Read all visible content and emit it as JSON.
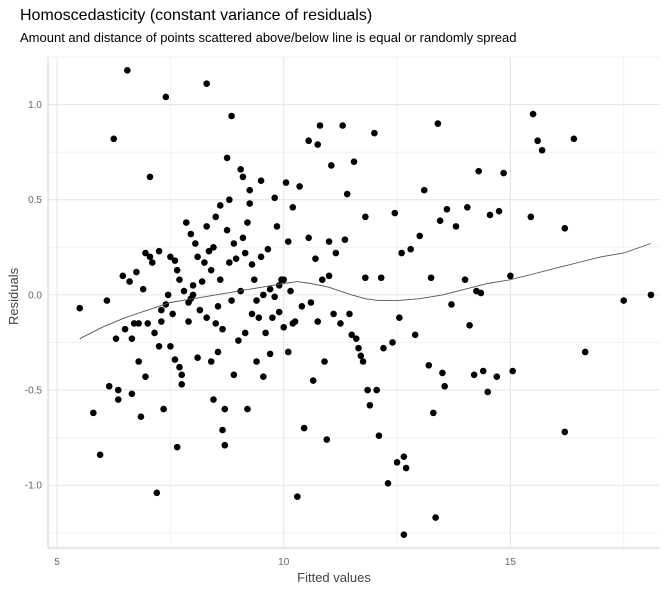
{
  "chart_data": {
    "type": "scatter",
    "title": "Homoscedasticity (constant variance of residuals)",
    "subtitle": "Amount and distance of points scattered above/below line is equal or randomly spread",
    "xlabel": "Fitted values",
    "ylabel": "Residuals",
    "xlim": [
      4.8,
      18.3
    ],
    "ylim": [
      -1.33,
      1.25
    ],
    "xticks": [
      5,
      10,
      15
    ],
    "yticks": [
      -1.0,
      -0.5,
      0.0,
      0.5,
      1.0
    ],
    "ytick_labels": [
      "-1.0",
      "-0.5",
      "0.0",
      "0.5",
      "1.0"
    ],
    "grid": true,
    "point_color": "#000000",
    "line_color": "#555555",
    "points": [
      [
        5.5,
        -0.07
      ],
      [
        5.8,
        -0.62
      ],
      [
        5.95,
        -0.84
      ],
      [
        6.1,
        -0.03
      ],
      [
        6.15,
        -0.48
      ],
      [
        6.25,
        0.82
      ],
      [
        6.3,
        -0.23
      ],
      [
        6.35,
        -0.5
      ],
      [
        6.35,
        -0.55
      ],
      [
        6.45,
        0.1
      ],
      [
        6.5,
        -0.18
      ],
      [
        6.55,
        1.18
      ],
      [
        6.6,
        0.07
      ],
      [
        6.65,
        -0.52
      ],
      [
        6.65,
        -0.23
      ],
      [
        6.7,
        -0.15
      ],
      [
        6.75,
        0.12
      ],
      [
        6.8,
        -0.35
      ],
      [
        6.8,
        -0.15
      ],
      [
        6.85,
        -0.64
      ],
      [
        6.9,
        0.03
      ],
      [
        6.95,
        0.22
      ],
      [
        6.95,
        -0.43
      ],
      [
        7.0,
        -0.15
      ],
      [
        7.05,
        0.62
      ],
      [
        7.05,
        0.2
      ],
      [
        7.1,
        0.17
      ],
      [
        7.15,
        -0.2
      ],
      [
        7.2,
        -1.04
      ],
      [
        7.25,
        0.23
      ],
      [
        7.25,
        -0.27
      ],
      [
        7.3,
        -0.08
      ],
      [
        7.3,
        -0.14
      ],
      [
        7.35,
        -0.6
      ],
      [
        7.4,
        -0.05
      ],
      [
        7.4,
        1.04
      ],
      [
        7.45,
        0.0
      ],
      [
        7.5,
        0.2
      ],
      [
        7.5,
        -0.27
      ],
      [
        7.55,
        -0.1
      ],
      [
        7.6,
        0.18
      ],
      [
        7.6,
        -0.34
      ],
      [
        7.65,
        -0.8
      ],
      [
        7.65,
        0.13
      ],
      [
        7.7,
        -0.38
      ],
      [
        7.7,
        0.08
      ],
      [
        7.75,
        -0.42
      ],
      [
        7.75,
        -0.47
      ],
      [
        7.8,
        0.02
      ],
      [
        7.85,
        0.38
      ],
      [
        7.9,
        -0.04
      ],
      [
        7.9,
        -0.14
      ],
      [
        7.95,
        0.32
      ],
      [
        7.95,
        -0.02
      ],
      [
        8.0,
        0.05
      ],
      [
        8.0,
        0.0
      ],
      [
        8.05,
        0.27
      ],
      [
        8.1,
        0.2
      ],
      [
        8.1,
        -0.33
      ],
      [
        8.15,
        -0.08
      ],
      [
        8.2,
        0.07
      ],
      [
        8.25,
        0.17
      ],
      [
        8.3,
        1.11
      ],
      [
        8.3,
        0.36
      ],
      [
        8.3,
        -0.12
      ],
      [
        8.35,
        0.23
      ],
      [
        8.4,
        0.13
      ],
      [
        8.4,
        -0.35
      ],
      [
        8.45,
        0.25
      ],
      [
        8.45,
        -0.55
      ],
      [
        8.5,
        0.41
      ],
      [
        8.5,
        -0.15
      ],
      [
        8.55,
        -0.06
      ],
      [
        8.55,
        -0.3
      ],
      [
        8.6,
        0.47
      ],
      [
        8.6,
        0.08
      ],
      [
        8.65,
        -0.18
      ],
      [
        8.65,
        -0.71
      ],
      [
        8.7,
        -0.6
      ],
      [
        8.7,
        -0.79
      ],
      [
        8.75,
        0.34
      ],
      [
        8.75,
        0.72
      ],
      [
        8.8,
        0.5
      ],
      [
        8.8,
        0.17
      ],
      [
        8.85,
        0.94
      ],
      [
        8.85,
        -0.03
      ],
      [
        8.9,
        0.27
      ],
      [
        8.9,
        -0.42
      ],
      [
        8.95,
        0.19
      ],
      [
        9.0,
        -0.24
      ],
      [
        9.05,
        0.66
      ],
      [
        9.05,
        0.02
      ],
      [
        9.1,
        0.3
      ],
      [
        9.1,
        0.62
      ],
      [
        9.15,
        0.22
      ],
      [
        9.15,
        -0.2
      ],
      [
        9.2,
        0.38
      ],
      [
        9.2,
        -0.6
      ],
      [
        9.25,
        0.48
      ],
      [
        9.25,
        0.55
      ],
      [
        9.3,
        0.16
      ],
      [
        9.3,
        -0.1
      ],
      [
        9.35,
        0.08
      ],
      [
        9.4,
        -0.03
      ],
      [
        9.4,
        -0.35
      ],
      [
        9.45,
        -0.12
      ],
      [
        9.5,
        0.6
      ],
      [
        9.5,
        0.2
      ],
      [
        9.55,
        0.0
      ],
      [
        9.55,
        -0.43
      ],
      [
        9.6,
        -0.2
      ],
      [
        9.65,
        0.24
      ],
      [
        9.7,
        0.03
      ],
      [
        9.7,
        -0.31
      ],
      [
        9.75,
        -0.12
      ],
      [
        9.8,
        0.51
      ],
      [
        9.8,
        -0.01
      ],
      [
        9.85,
        0.36
      ],
      [
        9.9,
        0.05
      ],
      [
        9.9,
        -0.09
      ],
      [
        9.95,
        0.08
      ],
      [
        10.0,
        0.08
      ],
      [
        10.0,
        -0.17
      ],
      [
        10.05,
        0.59
      ],
      [
        10.1,
        0.28
      ],
      [
        10.1,
        -0.3
      ],
      [
        10.15,
        0.02
      ],
      [
        10.2,
        0.46
      ],
      [
        10.2,
        -0.15
      ],
      [
        10.25,
        -0.14
      ],
      [
        10.3,
        -1.06
      ],
      [
        10.35,
        0.57
      ],
      [
        10.4,
        -0.06
      ],
      [
        10.45,
        -0.7
      ],
      [
        10.55,
        0.81
      ],
      [
        10.55,
        0.3
      ],
      [
        10.6,
        -0.04
      ],
      [
        10.65,
        -0.45
      ],
      [
        10.7,
        0.19
      ],
      [
        10.75,
        0.79
      ],
      [
        10.75,
        -0.14
      ],
      [
        10.8,
        0.89
      ],
      [
        10.85,
        0.08
      ],
      [
        10.9,
        -0.35
      ],
      [
        10.95,
        -0.76
      ],
      [
        11.0,
        0.28
      ],
      [
        11.0,
        0.1
      ],
      [
        11.05,
        0.68
      ],
      [
        11.1,
        -0.1
      ],
      [
        11.15,
        0.22
      ],
      [
        11.25,
        -0.15
      ],
      [
        11.3,
        0.89
      ],
      [
        11.35,
        0.29
      ],
      [
        11.4,
        0.53
      ],
      [
        11.45,
        -0.1
      ],
      [
        11.5,
        -0.21
      ],
      [
        11.55,
        0.7
      ],
      [
        11.6,
        -0.23
      ],
      [
        11.65,
        -0.28
      ],
      [
        11.7,
        -0.32
      ],
      [
        11.75,
        -0.35
      ],
      [
        11.8,
        0.41
      ],
      [
        11.8,
        0.09
      ],
      [
        11.85,
        -0.5
      ],
      [
        11.9,
        -0.58
      ],
      [
        12.0,
        0.85
      ],
      [
        12.05,
        -0.5
      ],
      [
        12.1,
        -0.74
      ],
      [
        12.15,
        0.09
      ],
      [
        12.2,
        -0.28
      ],
      [
        12.3,
        -0.99
      ],
      [
        12.4,
        -0.25
      ],
      [
        12.45,
        0.43
      ],
      [
        12.5,
        -0.88
      ],
      [
        12.55,
        -0.12
      ],
      [
        12.6,
        0.22
      ],
      [
        12.65,
        -0.85
      ],
      [
        12.65,
        -1.26
      ],
      [
        12.7,
        -0.91
      ],
      [
        12.8,
        0.24
      ],
      [
        12.9,
        -0.21
      ],
      [
        13.0,
        0.31
      ],
      [
        13.1,
        0.55
      ],
      [
        13.2,
        -0.37
      ],
      [
        13.25,
        0.09
      ],
      [
        13.3,
        -0.62
      ],
      [
        13.35,
        -1.17
      ],
      [
        13.4,
        0.9
      ],
      [
        13.45,
        0.39
      ],
      [
        13.5,
        -0.41
      ],
      [
        13.55,
        -0.48
      ],
      [
        13.6,
        0.45
      ],
      [
        13.7,
        -0.05
      ],
      [
        13.8,
        0.36
      ],
      [
        14.0,
        0.08
      ],
      [
        14.05,
        0.46
      ],
      [
        14.1,
        -0.16
      ],
      [
        14.2,
        -0.42
      ],
      [
        14.25,
        0.02
      ],
      [
        14.3,
        0.65
      ],
      [
        14.35,
        0.01
      ],
      [
        14.4,
        -0.4
      ],
      [
        14.5,
        -0.51
      ],
      [
        14.55,
        0.42
      ],
      [
        14.7,
        -0.43
      ],
      [
        14.75,
        0.44
      ],
      [
        14.85,
        0.64
      ],
      [
        15.0,
        0.1
      ],
      [
        15.05,
        -0.4
      ],
      [
        15.45,
        0.41
      ],
      [
        15.5,
        0.95
      ],
      [
        15.6,
        0.81
      ],
      [
        15.7,
        0.76
      ],
      [
        16.2,
        0.35
      ],
      [
        16.2,
        -0.72
      ],
      [
        16.4,
        0.82
      ],
      [
        16.65,
        -0.3
      ],
      [
        17.5,
        -0.03
      ],
      [
        18.1,
        0.0
      ]
    ],
    "smooth_line": [
      [
        5.5,
        -0.23
      ],
      [
        6.0,
        -0.17
      ],
      [
        6.5,
        -0.12
      ],
      [
        7.0,
        -0.08
      ],
      [
        7.5,
        -0.04
      ],
      [
        8.0,
        -0.02
      ],
      [
        8.5,
        0.0
      ],
      [
        9.0,
        0.02
      ],
      [
        9.5,
        0.04
      ],
      [
        10.0,
        0.06
      ],
      [
        10.3,
        0.07
      ],
      [
        10.6,
        0.06
      ],
      [
        11.0,
        0.04
      ],
      [
        11.5,
        0.0
      ],
      [
        11.8,
        -0.02
      ],
      [
        12.1,
        -0.03
      ],
      [
        12.5,
        -0.03
      ],
      [
        13.0,
        -0.02
      ],
      [
        13.5,
        0.0
      ],
      [
        14.0,
        0.03
      ],
      [
        14.5,
        0.06
      ],
      [
        15.0,
        0.08
      ],
      [
        15.5,
        0.11
      ],
      [
        16.0,
        0.14
      ],
      [
        16.5,
        0.17
      ],
      [
        17.0,
        0.2
      ],
      [
        17.5,
        0.22
      ],
      [
        18.1,
        0.27
      ]
    ]
  }
}
